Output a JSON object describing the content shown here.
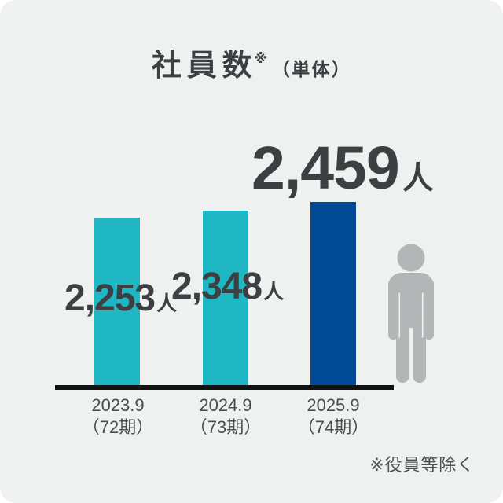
{
  "title": {
    "text": "社員数",
    "note_mark": "※",
    "qualifier": "（単体）"
  },
  "chart_data": {
    "type": "bar",
    "title": "社員数※（単体）",
    "categories": [
      "2023.9（72期）",
      "2024.9（73期）",
      "2025.9（74期）"
    ],
    "values": [
      2253,
      2348,
      2459
    ],
    "value_labels": [
      "2,253",
      "2,348",
      "2,459"
    ],
    "unit": "人",
    "bar_colors": [
      "#1fb7c3",
      "#1fb7c3",
      "#004a96"
    ],
    "highlight_index": 2,
    "ylim": [
      0,
      2459
    ],
    "xlabel": "",
    "ylabel": "",
    "grid": false,
    "legend": "none",
    "footnote": "※役員等除く"
  },
  "bars": [
    {
      "year": "2023.9",
      "term": "（72期）",
      "value_label": "2,253",
      "unit": "人"
    },
    {
      "year": "2024.9",
      "term": "（73期）",
      "value_label": "2,348",
      "unit": "人"
    },
    {
      "year": "2025.9",
      "term": "（74期）",
      "value_label": "2,459",
      "unit": "人"
    }
  ],
  "footnote": "※役員等除く",
  "colors": {
    "background": "#eff1f1",
    "teal": "#1fb7c3",
    "blue": "#004a96",
    "text_dark": "#3d4043",
    "tick_text": "#4a4d50",
    "axis": "#101214",
    "person_gray": "#b4b5b6"
  }
}
